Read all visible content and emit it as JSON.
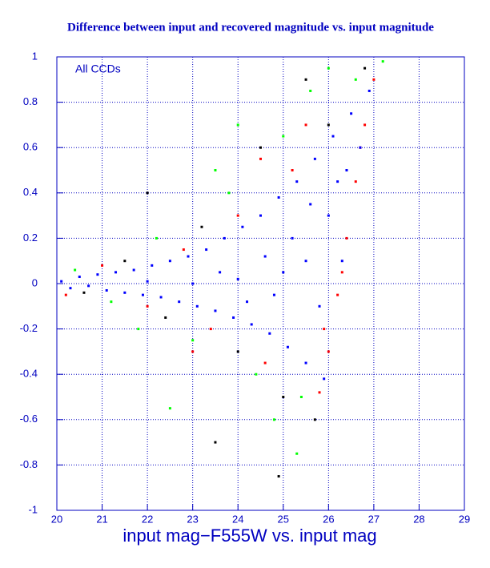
{
  "chart_data": {
    "type": "scatter",
    "title": "Difference between input and recovered magnitude vs. input magnitude",
    "annotation": "All CCDs",
    "x_label": "input mag−F555W vs. input mag",
    "xlim": [
      20,
      29
    ],
    "xticks": [
      20,
      21,
      22,
      23,
      24,
      25,
      26,
      27,
      28,
      29
    ],
    "ylim": [
      -1,
      1
    ],
    "yticks": [
      -1,
      -0.8,
      -0.6,
      -0.4,
      -0.2,
      0,
      0.2,
      0.4,
      0.6,
      0.8,
      1
    ],
    "grid": true,
    "series": [
      {
        "color": "#000000",
        "x": [
          20.6,
          21.5,
          22.4,
          23.2,
          24,
          24.5,
          25,
          25.5,
          26,
          26.8,
          23.5,
          24.9,
          22,
          25.7
        ],
        "y": [
          -0.04,
          0.1,
          -0.15,
          0.25,
          -0.3,
          0.6,
          -0.5,
          0.9,
          0.7,
          0.95,
          -0.7,
          -0.85,
          0.4,
          -0.6
        ]
      },
      {
        "color": "#ff0000",
        "x": [
          20.2,
          21,
          22,
          22.8,
          23.4,
          24,
          24.6,
          25.2,
          25.8,
          26.0,
          26.2,
          26.4,
          26.6,
          26.8,
          27.0,
          25.5,
          24.5,
          23,
          25.9,
          26.3,
          26.7
        ],
        "y": [
          -0.05,
          0.08,
          -0.1,
          0.15,
          -0.2,
          0.3,
          -0.35,
          0.5,
          -0.48,
          -0.3,
          -0.05,
          0.2,
          0.45,
          0.7,
          0.9,
          0.7,
          0.55,
          -0.3,
          -0.2,
          0.05,
          0.6
        ]
      },
      {
        "color": "#00ff00",
        "x": [
          20.4,
          21.2,
          22.2,
          23,
          23.8,
          24.4,
          25,
          25.4,
          25.6,
          26,
          26.6,
          27.2,
          22.5,
          24.8,
          25.3,
          23.5,
          21.8,
          24
        ],
        "y": [
          0.06,
          -0.08,
          0.2,
          -0.25,
          0.4,
          -0.4,
          0.65,
          -0.5,
          0.85,
          0.95,
          0.9,
          0.98,
          -0.55,
          -0.6,
          -0.75,
          0.5,
          -0.2,
          0.7
        ]
      },
      {
        "color": "#0000ff",
        "x": [
          20.1,
          20.3,
          20.5,
          20.7,
          20.9,
          21.1,
          21.3,
          21.5,
          21.7,
          21.9,
          22.1,
          22.3,
          22.5,
          22.7,
          22.9,
          23.1,
          23.3,
          23.5,
          23.7,
          23.9,
          24.1,
          24.3,
          24.5,
          24.7,
          24.9,
          25.1,
          25.3,
          25.5,
          25.7,
          25.9,
          26.1,
          26.3,
          26.5,
          26.7,
          26.9,
          25.0,
          24.0,
          23.0,
          22.0,
          25.5,
          25.8,
          26.0,
          26.2,
          24.6,
          24.8,
          25.2,
          25.6,
          26.4,
          23.6,
          24.2
        ],
        "y": [
          0.01,
          -0.02,
          0.03,
          -0.01,
          0.04,
          -0.03,
          0.05,
          -0.04,
          0.06,
          -0.05,
          0.08,
          -0.06,
          0.1,
          -0.08,
          0.12,
          -0.1,
          0.15,
          -0.12,
          0.2,
          -0.15,
          0.25,
          -0.18,
          0.3,
          -0.22,
          0.38,
          -0.28,
          0.45,
          -0.35,
          0.55,
          -0.42,
          0.65,
          0.1,
          0.75,
          0.6,
          0.85,
          0.05,
          0.02,
          0,
          0.01,
          0.1,
          -0.1,
          0.3,
          0.45,
          0.12,
          -0.05,
          0.2,
          0.35,
          0.5,
          0.05,
          -0.08
        ]
      }
    ]
  }
}
